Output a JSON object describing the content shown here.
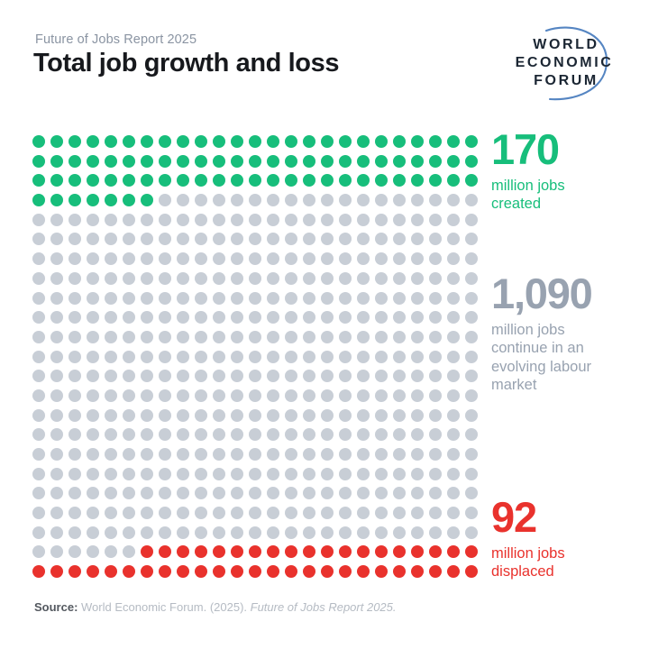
{
  "header": {
    "eyebrow": "Future of Jobs Report 2025",
    "title": "Total job growth and loss"
  },
  "logo": {
    "line1": "WORLD",
    "line2": "ECONOMIC",
    "line3": "FORUM",
    "text_color": "#1B2633",
    "arc_color": "#5585C2"
  },
  "chart_data": {
    "type": "pictogram",
    "title": "Total job growth and loss",
    "unit": "million jobs",
    "grid": {
      "rows": 23,
      "cols": 25,
      "total_dots": 575
    },
    "legend_position": "right",
    "series": [
      {
        "name": "jobs-created",
        "value": 170,
        "display": "170",
        "label": "million jobs\ncreated",
        "dots": 82,
        "color": "#17BE7B",
        "text_color": "#17BE7B"
      },
      {
        "name": "jobs-continuing",
        "value": 1090,
        "display": "1,090",
        "label": "million jobs\ncontinue in an\nevolving labour\nmarket",
        "dots": 449,
        "color": "#C8CED6",
        "text_color": "#98A2B0"
      },
      {
        "name": "jobs-displaced",
        "value": 92,
        "display": "92",
        "label": "million jobs\ndisplaced",
        "dots": 44,
        "color": "#E9322D",
        "text_color": "#E9322D"
      }
    ]
  },
  "footer": {
    "source_prefix": "Source:",
    "source_body": " World Economic Forum. (2025). ",
    "source_title": "Future of Jobs Report 2025."
  }
}
